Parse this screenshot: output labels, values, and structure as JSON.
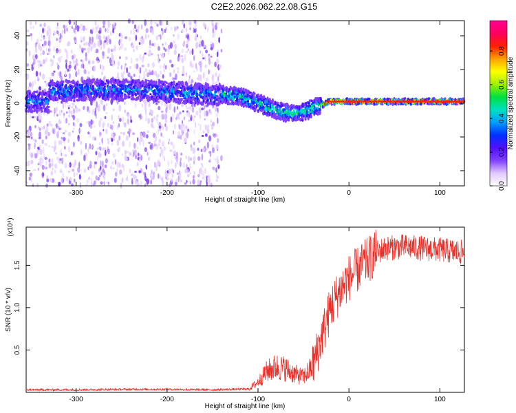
{
  "title": "C2E2.2026.062.22.08.G15",
  "colors": {
    "snr_line": "#e8302a",
    "axis": "#000000"
  },
  "chart_data": [
    {
      "type": "heatmap",
      "xlabel": "Height of straight line (km)",
      "ylabel": "Frequency (Hz)",
      "xlim": [
        -355,
        127
      ],
      "ylim": [
        -49,
        49
      ],
      "xticks": [
        -300,
        -200,
        -100,
        0,
        100
      ],
      "yticks": [
        -40,
        -20,
        0,
        20,
        40
      ],
      "colorbar": {
        "label": "Normalized spectral amplitude",
        "range": [
          0,
          0.98
        ],
        "ticks": [
          0.0,
          0.2,
          0.4,
          0.6,
          0.8
        ],
        "tick_labels": [
          "0.0",
          "0.2",
          "0.4",
          "0.6",
          "0.8"
        ],
        "colormap": [
          "#ffffff",
          "#e0c8ff",
          "#8040ff",
          "#5010ff",
          "#0030ff",
          "#00a0ff",
          "#00e0c0",
          "#00e040",
          "#a0f000",
          "#ffff00",
          "#ffa000",
          "#ff2000",
          "#ff0060",
          "#ff0090"
        ]
      },
      "noise_region_x": [
        -355,
        -140
      ],
      "ridge_center": [
        {
          "x": -330,
          "y": 7
        },
        {
          "x": -280,
          "y": 8
        },
        {
          "x": -230,
          "y": 8
        },
        {
          "x": -180,
          "y": 6
        },
        {
          "x": -140,
          "y": 5
        },
        {
          "x": -120,
          "y": 4
        },
        {
          "x": -100,
          "y": 0
        },
        {
          "x": -80,
          "y": -4
        },
        {
          "x": -65,
          "y": -6
        },
        {
          "x": -50,
          "y": -5
        },
        {
          "x": -35,
          "y": -2
        },
        {
          "x": -20,
          "y": 1
        },
        {
          "x": 0,
          "y": 1
        },
        {
          "x": 50,
          "y": 1
        },
        {
          "x": 127,
          "y": 1
        }
      ]
    },
    {
      "type": "line",
      "xlabel": "Height of straight line (km)",
      "ylabel": "SNR (10 * v/v)",
      "multiplier_label": "(x10⁴)",
      "xlim": [
        -355,
        127
      ],
      "ylim": [
        0,
        1.95
      ],
      "xticks": [
        -300,
        -200,
        -100,
        0,
        100
      ],
      "yticks": [
        0.5,
        1.0,
        1.5
      ],
      "ytick_labels": [
        "0.5",
        "1.0",
        "1.5"
      ],
      "series": [
        {
          "name": "SNR",
          "x": [
            -355,
            -300,
            -250,
            -200,
            -150,
            -110,
            -100,
            -90,
            -80,
            -70,
            -60,
            -50,
            -40,
            -30,
            -20,
            -10,
            0,
            10,
            20,
            30,
            40,
            60,
            80,
            100,
            127
          ],
          "y": [
            0.03,
            0.03,
            0.035,
            0.035,
            0.03,
            0.04,
            0.12,
            0.25,
            0.3,
            0.28,
            0.22,
            0.18,
            0.3,
            0.65,
            1.0,
            1.2,
            1.35,
            1.45,
            1.55,
            1.65,
            1.7,
            1.72,
            1.7,
            1.68,
            1.65
          ]
        }
      ]
    }
  ]
}
